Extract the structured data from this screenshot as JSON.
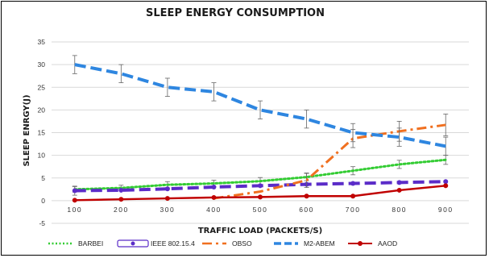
{
  "chart_data": {
    "type": "line",
    "title": "SLEEP ENERGY CONSUMPTION",
    "xlabel": "TRAFFIC LOAD (PACKETS/S)",
    "ylabel": "SLEEP ENRGY(J)",
    "categories": [
      "100",
      "200",
      "300",
      "400",
      "500",
      "600",
      "700",
      "800",
      "900"
    ],
    "ylim": [
      -5,
      35
    ],
    "yticks": [
      -5,
      0,
      5,
      10,
      15,
      20,
      25,
      30,
      35
    ],
    "grid": true,
    "legend_position": "bottom",
    "series": [
      {
        "name": "BARBEI",
        "color": "#33cc33",
        "style": "dotted",
        "marker": "none",
        "values": [
          2.5,
          2.8,
          3.5,
          3.8,
          4.3,
          5.2,
          6.6,
          8.0,
          9.0
        ],
        "errors": [
          0.6,
          0.6,
          0.7,
          0.7,
          0.8,
          0.8,
          0.9,
          0.9,
          1.0
        ]
      },
      {
        "name": "IEEE 802.15.4",
        "color": "#5b2cc8",
        "style": "dashed",
        "marker": "circle",
        "values": [
          2.2,
          2.3,
          2.6,
          3.0,
          3.3,
          3.6,
          3.8,
          4.0,
          4.2
        ],
        "errors": [
          1.0,
          0,
          0,
          0,
          0,
          0,
          0,
          0,
          0
        ]
      },
      {
        "name": "OBSO",
        "color": "#f07020",
        "style": "dashdot",
        "marker": "none",
        "values": [
          null,
          null,
          null,
          0.5,
          2.0,
          4.5,
          13.7,
          15.3,
          16.7
        ],
        "errors": [
          0,
          0,
          0,
          0,
          0,
          1.6,
          2.0,
          2.2,
          2.4
        ]
      },
      {
        "name": "M2-ABEM",
        "color": "#2e86e0",
        "style": "dashed",
        "marker": "none",
        "values": [
          30.0,
          28.0,
          25.0,
          24.0,
          20.0,
          18.0,
          15.0,
          14.0,
          12.0
        ],
        "errors": [
          2.0,
          2.0,
          2.0,
          2.0,
          2.0,
          2.0,
          2.0,
          2.0,
          2.0
        ]
      },
      {
        "name": "AAOD",
        "color": "#c00000",
        "style": "solid",
        "marker": "circle",
        "values": [
          0.1,
          0.3,
          0.5,
          0.7,
          0.8,
          1.0,
          1.0,
          2.3,
          3.3
        ],
        "errors": [
          0,
          0,
          0,
          0,
          0,
          0,
          0,
          0,
          0
        ]
      }
    ]
  }
}
